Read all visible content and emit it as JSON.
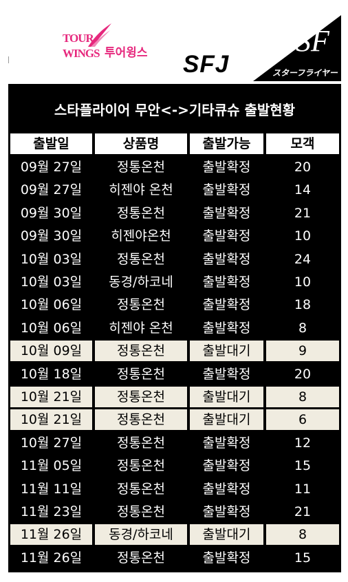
{
  "logos": {
    "tourwings_line1": "TOUR",
    "tourwings_line2": "WINGS",
    "tourwings_korean": "투어윙스",
    "sfj": "SFJ",
    "starflyer_monogram": "SF",
    "starflyer_text": "スターフライヤー"
  },
  "colors": {
    "accent": "#e6287d",
    "board": "#000000",
    "wait_row": "#f0ece0"
  },
  "title": "스타플라이어 무안<->기타큐슈 출발현황",
  "headers": [
    "출발일",
    "상품명",
    "출발가능",
    "모객"
  ],
  "rows": [
    {
      "date": "09월 27일",
      "product": "정통온천",
      "status": "출발확정",
      "count": "20",
      "waiting": false
    },
    {
      "date": "09월 27일",
      "product": "히젠야 온천",
      "status": "출발확정",
      "count": "14",
      "waiting": false
    },
    {
      "date": "09월 30일",
      "product": "정통온천",
      "status": "출발확정",
      "count": "21",
      "waiting": false
    },
    {
      "date": "09월 30일",
      "product": "히젠야온천",
      "status": "출발확정",
      "count": "10",
      "waiting": false
    },
    {
      "date": "10월 03일",
      "product": "정통온천",
      "status": "출발확정",
      "count": "24",
      "waiting": false
    },
    {
      "date": "10월 03일",
      "product": "동경/하코네",
      "status": "출발확정",
      "count": "10",
      "waiting": false
    },
    {
      "date": "10월 06일",
      "product": "정통온천",
      "status": "출발확정",
      "count": "18",
      "waiting": false
    },
    {
      "date": "10월 06일",
      "product": "히젠야 온천",
      "status": "출발확정",
      "count": "8",
      "waiting": false
    },
    {
      "date": "10월 09일",
      "product": "정통온천",
      "status": "출발대기",
      "count": "9",
      "waiting": true
    },
    {
      "date": "10월 18일",
      "product": "정통온천",
      "status": "출발확정",
      "count": "20",
      "waiting": false
    },
    {
      "date": "10월 21일",
      "product": "정통온천",
      "status": "출발대기",
      "count": "8",
      "waiting": true
    },
    {
      "date": "10월 21일",
      "product": "정통온천",
      "status": "출발대기",
      "count": "6",
      "waiting": true
    },
    {
      "date": "10월 27일",
      "product": "정통온천",
      "status": "출발확정",
      "count": "12",
      "waiting": false
    },
    {
      "date": "11월 05일",
      "product": "정통온천",
      "status": "출발확정",
      "count": "15",
      "waiting": false
    },
    {
      "date": "11월 11일",
      "product": "정통온천",
      "status": "출발확정",
      "count": "11",
      "waiting": false
    },
    {
      "date": "11월 23일",
      "product": "정통온천",
      "status": "출발확정",
      "count": "21",
      "waiting": false
    },
    {
      "date": "11월 26일",
      "product": "동경/하코네",
      "status": "출발대기",
      "count": "8",
      "waiting": true
    },
    {
      "date": "11월 26일",
      "product": "정통온천",
      "status": "출발확정",
      "count": "15",
      "waiting": false
    }
  ]
}
